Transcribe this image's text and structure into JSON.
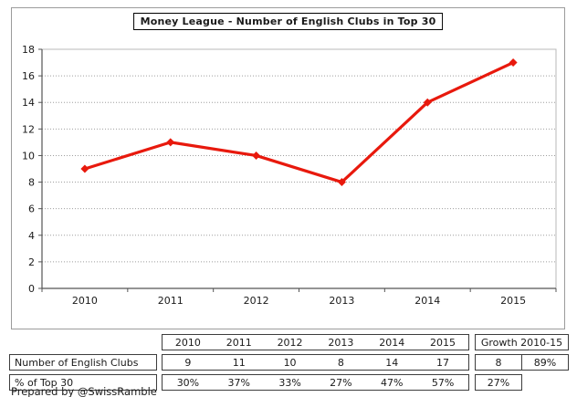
{
  "chart_data": {
    "type": "line",
    "title": "Money League - Number of English Clubs in Top 30",
    "categories": [
      "2010",
      "2011",
      "2012",
      "2013",
      "2014",
      "2015"
    ],
    "series": [
      {
        "name": "Number of English Clubs",
        "values": [
          9,
          11,
          10,
          8,
          14,
          17
        ]
      }
    ],
    "xlabel": "",
    "ylabel": "",
    "ylim": [
      0,
      18
    ],
    "ytick_step": 2,
    "grid": true,
    "legend": false,
    "line_color": "#e8190d",
    "marker": "diamond",
    "grid_color": "#9e9e9e",
    "axis_color": "#555555",
    "plot_border_color": "#b8b8b8"
  },
  "table": {
    "col_headers": [
      "2010",
      "2011",
      "2012",
      "2013",
      "2014",
      "2015"
    ],
    "growth_header": "Growth 2010-15",
    "rows": [
      {
        "label": "Number of English Clubs",
        "values": [
          "9",
          "11",
          "10",
          "8",
          "14",
          "17"
        ],
        "growth": [
          "8",
          "89%"
        ]
      },
      {
        "label": "% of Top 30",
        "values": [
          "30%",
          "37%",
          "33%",
          "27%",
          "47%",
          "57%"
        ],
        "growth": [
          "27%"
        ]
      }
    ]
  },
  "footer": {
    "credit": "Prepared by @SwissRamble"
  }
}
